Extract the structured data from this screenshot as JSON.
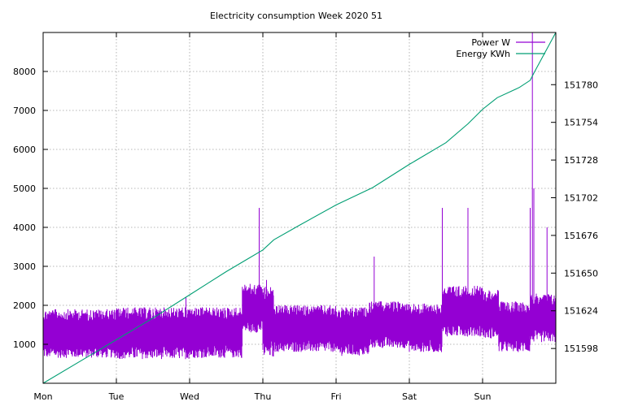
{
  "chart_data": {
    "type": "line",
    "title": "Electricity consumption Week 2020 51",
    "x": {
      "tick_labels": [
        "Mon",
        "Tue",
        "Wed",
        "Thu",
        "Fri",
        "Sat",
        "Sun"
      ],
      "range_days": [
        0,
        7
      ]
    },
    "y_left": {
      "ticks": [
        1000,
        2000,
        3000,
        4000,
        5000,
        6000,
        7000,
        8000
      ],
      "range": [
        0,
        9000
      ]
    },
    "y_right": {
      "ticks": [
        151598,
        151624,
        151650,
        151676,
        151702,
        151728,
        151754,
        151780
      ],
      "range": [
        151574,
        151816
      ]
    },
    "grid": true,
    "legend_position": "top-right",
    "series": [
      {
        "name": "Power W",
        "axis": "left",
        "color": "#9400d3",
        "style": "dense fluctuating band (impulses)",
        "band_segments": [
          {
            "x_start": 0.0,
            "x_end": 1.0,
            "low": 650,
            "high": 1900
          },
          {
            "x_start": 1.0,
            "x_end": 2.0,
            "low": 620,
            "high": 1950
          },
          {
            "x_start": 2.0,
            "x_end": 2.72,
            "low": 650,
            "high": 1950
          },
          {
            "x_start": 2.72,
            "x_end": 3.0,
            "low": 1300,
            "high": 2550
          },
          {
            "x_start": 3.0,
            "x_end": 3.15,
            "low": 650,
            "high": 2500
          },
          {
            "x_start": 3.15,
            "x_end": 4.0,
            "low": 800,
            "high": 2000
          },
          {
            "x_start": 4.0,
            "x_end": 4.45,
            "low": 700,
            "high": 1950
          },
          {
            "x_start": 4.45,
            "x_end": 5.0,
            "low": 900,
            "high": 2100
          },
          {
            "x_start": 5.0,
            "x_end": 5.45,
            "low": 800,
            "high": 2050
          },
          {
            "x_start": 5.45,
            "x_end": 6.0,
            "low": 1200,
            "high": 2500
          },
          {
            "x_start": 6.0,
            "x_end": 6.22,
            "low": 1150,
            "high": 2400
          },
          {
            "x_start": 6.22,
            "x_end": 6.65,
            "low": 800,
            "high": 2100
          },
          {
            "x_start": 6.65,
            "x_end": 7.0,
            "low": 1050,
            "high": 2300
          }
        ],
        "spikes": [
          {
            "x": 1.95,
            "y": 2200
          },
          {
            "x": 2.95,
            "y": 4500
          },
          {
            "x": 3.05,
            "y": 2650
          },
          {
            "x": 4.52,
            "y": 3250
          },
          {
            "x": 5.45,
            "y": 4500
          },
          {
            "x": 5.8,
            "y": 4500
          },
          {
            "x": 6.65,
            "y": 4500
          },
          {
            "x": 6.68,
            "y": 9000
          },
          {
            "x": 6.7,
            "y": 5000
          },
          {
            "x": 6.88,
            "y": 4000
          }
        ]
      },
      {
        "name": "Energy KWh",
        "axis": "right",
        "color": "#009e73",
        "x": [
          0,
          0.5,
          1.0,
          1.5,
          2.0,
          2.5,
          2.8,
          3.0,
          3.15,
          3.5,
          4.0,
          4.5,
          5.0,
          5.5,
          5.8,
          6.0,
          6.2,
          6.5,
          6.65,
          6.7,
          7.0
        ],
        "values": [
          151574,
          151589,
          151604,
          151619,
          151635,
          151651,
          151660,
          151666,
          151673,
          151683,
          151697,
          151709,
          151725,
          151740,
          151753,
          151763,
          151771,
          151778,
          151783,
          151788,
          151816
        ]
      }
    ]
  }
}
